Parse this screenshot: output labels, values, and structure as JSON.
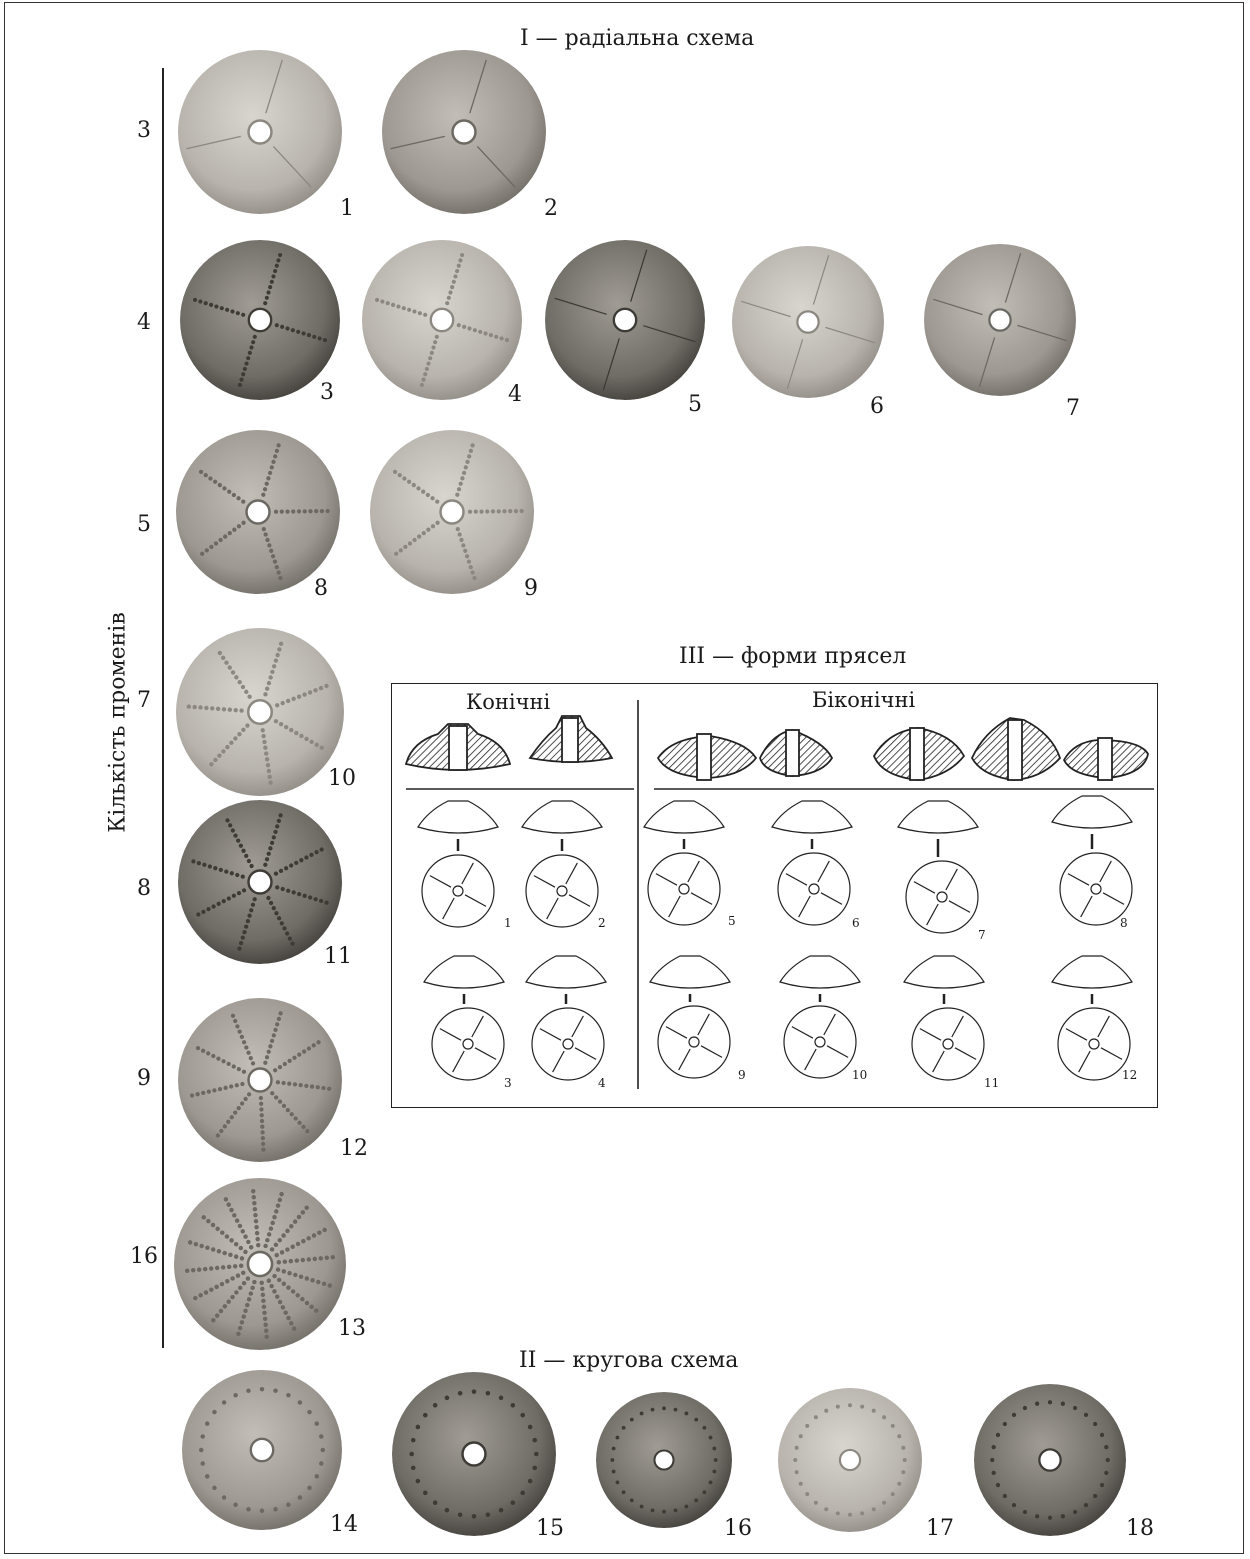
{
  "titles": {
    "radial": "I — радіальна схема",
    "forms": "III — форми прясел",
    "circular": "II — кругова схема"
  },
  "y_axis_label": "Кількість променів",
  "row_labels": [
    "3",
    "4",
    "5",
    "7",
    "8",
    "9",
    "16"
  ],
  "specimens": [
    {
      "num": "1",
      "rays": 3
    },
    {
      "num": "2",
      "rays": 3
    },
    {
      "num": "3",
      "rays": 4
    },
    {
      "num": "4",
      "rays": 4
    },
    {
      "num": "5",
      "rays": 4
    },
    {
      "num": "6",
      "rays": 4
    },
    {
      "num": "7",
      "rays": 4
    },
    {
      "num": "8",
      "rays": 5
    },
    {
      "num": "9",
      "rays": 5
    },
    {
      "num": "10",
      "rays": 7
    },
    {
      "num": "11",
      "rays": 8
    },
    {
      "num": "12",
      "rays": 9
    },
    {
      "num": "13",
      "rays": 16
    },
    {
      "num": "14",
      "rays": 0
    },
    {
      "num": "15",
      "rays": 0
    },
    {
      "num": "16",
      "rays": 0
    },
    {
      "num": "17",
      "rays": 0
    },
    {
      "num": "18",
      "rays": 0
    }
  ],
  "forms_panel": {
    "conical_label": "Конічні",
    "biconical_label": "Біконічні",
    "drawing_numbers": [
      "1",
      "2",
      "3",
      "4",
      "5",
      "6",
      "7",
      "8",
      "9",
      "10",
      "11",
      "12"
    ]
  },
  "colors": {
    "clay_light": "#c9c6c0",
    "clay_mid": "#9e9a93",
    "clay_dark": "#6e6a64",
    "ink": "#1a1a1a"
  }
}
